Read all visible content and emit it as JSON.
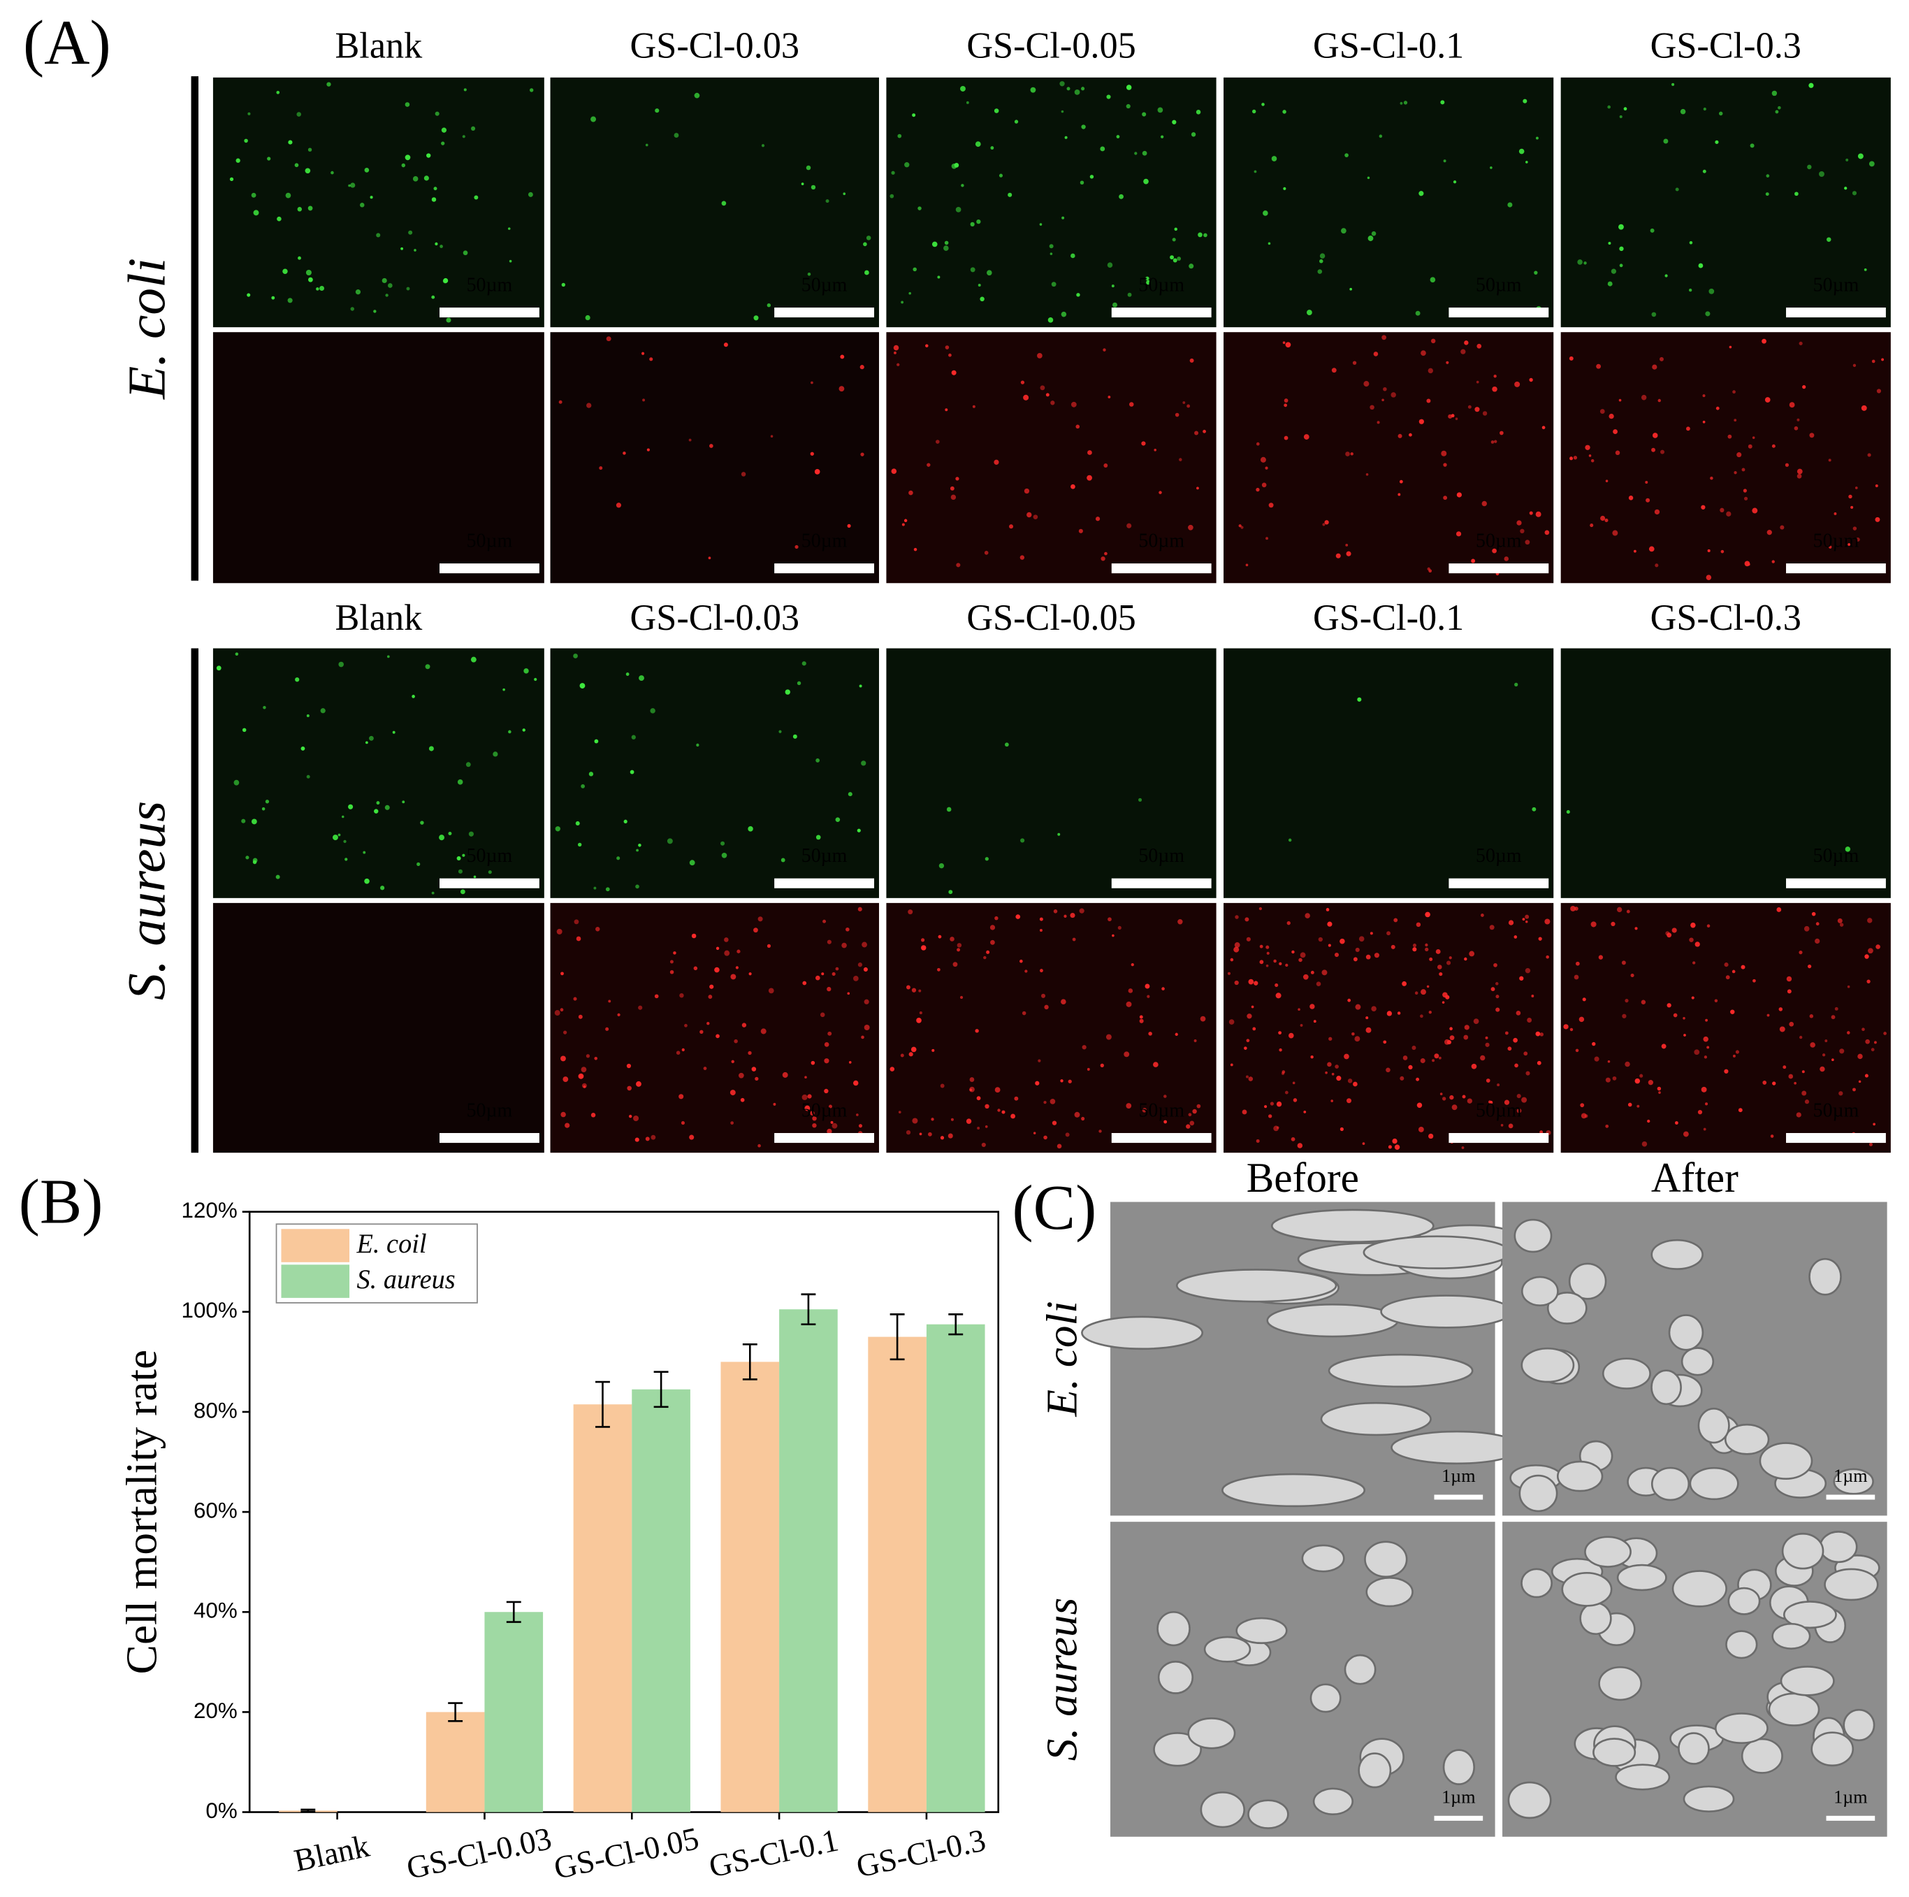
{
  "chart_data": {
    "type": "bar",
    "y_label": "Cell mortality rate",
    "categories": [
      "Blank",
      "GS-Cl-0.03",
      "GS-Cl-0.05",
      "GS-Cl-0.1",
      "GS-Cl-0.3"
    ],
    "series": [
      {
        "name": "E. coil",
        "color": "#f9c89b",
        "values": [
          0.3,
          20,
          81.5,
          90,
          95
        ],
        "errors": [
          0.2,
          1.8,
          4.5,
          3.5,
          4.5
        ]
      },
      {
        "name": "S. aureus",
        "color": "#9fd9a3",
        "values": [
          0,
          40,
          84.5,
          100.5,
          97.5
        ],
        "errors": [
          0,
          2,
          3.5,
          3,
          2
        ]
      }
    ],
    "ylim": [
      0,
      120
    ],
    "yticks": [
      {
        "value": 0,
        "label": "0%"
      },
      {
        "value": 20,
        "label": "20%"
      },
      {
        "value": 40,
        "label": "40%"
      },
      {
        "value": 60,
        "label": "60%"
      },
      {
        "value": 80,
        "label": "80%"
      },
      {
        "value": 100,
        "label": "100%"
      },
      {
        "value": 120,
        "label": "120%"
      }
    ],
    "legend": "upper left"
  },
  "panel_labels": [
    "(A)",
    "(B)",
    "(C)"
  ],
  "fluorescence": {
    "groups": [
      {
        "row_label": "E. coli",
        "columns": [
          "Blank",
          "GS-Cl-0.03",
          "GS-Cl-0.05",
          "GS-Cl-0.1",
          "GS-Cl-0.3"
        ],
        "scale_labels": [
          [
            "50µm",
            "50µm",
            "50µm",
            "50µm",
            "50µm"
          ],
          [
            "50µm",
            "50µm",
            "50µm",
            "50µm",
            "50µm"
          ]
        ]
      },
      {
        "row_label": "S. aureus",
        "columns": [
          "Blank",
          "GS-Cl-0.03",
          "GS-Cl-0.05",
          "GS-Cl-0.1",
          "GS-Cl-0.3"
        ],
        "scale_labels": [
          [
            "50µm",
            "50µm",
            "50µm",
            "50µm",
            "50µm"
          ],
          [
            "50µm",
            "50µm",
            "50µm",
            "50µm",
            "50µm"
          ]
        ]
      }
    ]
  },
  "sem": {
    "columns": [
      "Before",
      "After"
    ],
    "rows": [
      {
        "label": "E. coli",
        "scale_labels": [
          "1µm",
          "1µm"
        ]
      },
      {
        "label": "S. aureus",
        "scale_labels": [
          "1µm",
          "1µm"
        ]
      }
    ]
  }
}
